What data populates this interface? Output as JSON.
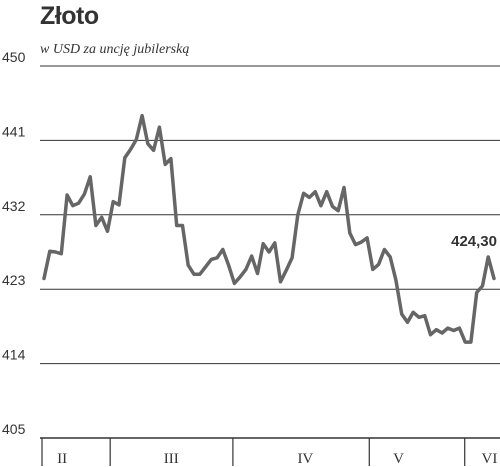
{
  "chart_data": {
    "type": "line",
    "title": "Złoto",
    "subtitle": "w USD za uncję jubilerską",
    "ylim": [
      405,
      450
    ],
    "yticks": [
      450,
      441,
      432,
      423,
      414,
      405
    ],
    "xlim": [
      0,
      99
    ],
    "month_labels": [
      "II",
      "III",
      "IV",
      "V",
      "VI"
    ],
    "month_label_positions": [
      4,
      28,
      57.5,
      78,
      98
    ],
    "month_boundaries": [
      0,
      15,
      42,
      72,
      93
    ],
    "last_value_label": "424,30",
    "grid": true,
    "line_color": "#666666",
    "series": [
      {
        "values": [
          424.3,
          427.6,
          427.5,
          427.3,
          434.4,
          433.1,
          433.4,
          434.5,
          436.6,
          430.7,
          431.7,
          430.0,
          433.6,
          433.2,
          438.9,
          439.9,
          441.1,
          444.0,
          440.6,
          439.8,
          442.6,
          438.1,
          438.8,
          430.7,
          430.7,
          425.9,
          424.8,
          424.8,
          425.7,
          426.6,
          426.8,
          427.8,
          425.9,
          423.7,
          424.5,
          425.4,
          427.0,
          424.9,
          428.5,
          427.5,
          428.6,
          423.9,
          425.3,
          426.8,
          432.0,
          434.6,
          434.1,
          434.8,
          433.1,
          434.8,
          433.0,
          432.5,
          435.3,
          429.8,
          428.4,
          428.7,
          429.2,
          425.4,
          426.0,
          427.8,
          426.9,
          424.1,
          420.0,
          419.0,
          420.2,
          419.6,
          419.8,
          417.5,
          418.1,
          417.7,
          418.3,
          418.0,
          418.3,
          416.6,
          416.6,
          422.6,
          423.4,
          426.9,
          424.3
        ]
      }
    ]
  }
}
